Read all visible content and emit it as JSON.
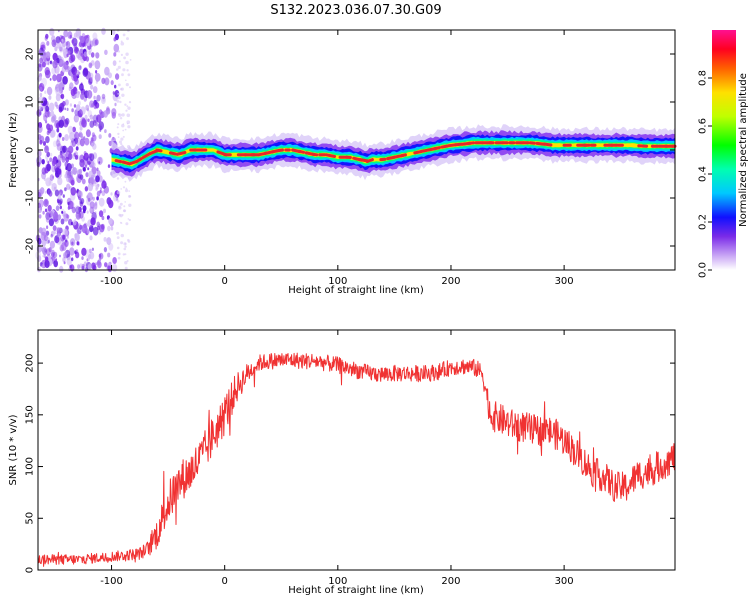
{
  "title": "S132.2023.036.07.30.G09",
  "colors": {
    "snr_line": "#f03232",
    "ridge_core": "#e8262a",
    "noise": "#7a2be8"
  },
  "chart_data": [
    {
      "type": "heatmap",
      "name": "spectrogram",
      "xlabel": "Height of straight line (km)",
      "ylabel": "Frequency (Hz)",
      "xlim": [
        -165,
        398
      ],
      "ylim": [
        -25,
        25
      ],
      "x_ticks": [
        -100,
        0,
        100,
        200,
        300
      ],
      "y_ticks": [
        -20,
        -10,
        0,
        10,
        20
      ],
      "grid": false,
      "noise_region_x": [
        -165,
        -95
      ],
      "ridge": {
        "x": [
          -100,
          -90,
          -82,
          -75,
          -68,
          -60,
          -50,
          -40,
          -30,
          -20,
          -10,
          0,
          10,
          20,
          30,
          40,
          50,
          60,
          70,
          80,
          90,
          100,
          110,
          120,
          125,
          130,
          140,
          150,
          160,
          170,
          180,
          190,
          200,
          210,
          220,
          230,
          240,
          250,
          260,
          270,
          280,
          290,
          300,
          310,
          320,
          330,
          340,
          350,
          360,
          370,
          380,
          398
        ],
        "frequency_hz": [
          -2,
          -2.5,
          -3,
          -2,
          -1,
          0,
          -0.5,
          -1,
          0,
          0,
          0,
          -1,
          -1,
          -1,
          -1,
          -0.5,
          0,
          0,
          -0.5,
          -1,
          -1,
          -1.5,
          -1.5,
          -2,
          -2.5,
          -2,
          -2,
          -1.5,
          -1,
          -0.5,
          0,
          0.5,
          1,
          1.2,
          1.5,
          1.5,
          1.5,
          1.5,
          1.5,
          1.5,
          1.3,
          1,
          1,
          1,
          1,
          1,
          1,
          1,
          1,
          0.8,
          0.8,
          0.8
        ]
      },
      "colorbar": {
        "label": "Normalized spectral amplitude",
        "ticks": [
          "0.0",
          "0.2",
          "0.4",
          "0.6",
          "0.8"
        ],
        "range": [
          0,
          1
        ]
      }
    },
    {
      "type": "line",
      "name": "snr",
      "xlabel": "Height of straight line (km)",
      "ylabel": "SNR (10 * v/v)",
      "xlim": [
        -165,
        398
      ],
      "ylim": [
        0,
        232
      ],
      "x_ticks": [
        -100,
        0,
        100,
        200,
        300
      ],
      "y_ticks": [
        0,
        50,
        100,
        150,
        200
      ],
      "grid": false,
      "series": [
        {
          "x": [
            -165,
            -150,
            -130,
            -110,
            -90,
            -75,
            -68,
            -60,
            -50,
            -40,
            -30,
            -20,
            -10,
            0,
            10,
            20,
            30,
            40,
            50,
            60,
            70,
            80,
            90,
            100,
            110,
            120,
            130,
            140,
            150,
            160,
            170,
            180,
            190,
            200,
            210,
            220,
            228,
            235,
            245,
            255,
            265,
            275,
            285,
            295,
            305,
            315,
            325,
            335,
            345,
            355,
            365,
            375,
            385,
            398
          ],
          "values": [
            10,
            10,
            10,
            12,
            14,
            16,
            20,
            35,
            65,
            85,
            95,
            110,
            130,
            150,
            175,
            190,
            200,
            202,
            203,
            203,
            202,
            202,
            200,
            198,
            195,
            192,
            190,
            189,
            190,
            190,
            190,
            190,
            192,
            196,
            197,
            196,
            190,
            150,
            145,
            140,
            138,
            135,
            135,
            130,
            120,
            108,
            95,
            90,
            80,
            80,
            92,
            95,
            100,
            110
          ],
          "noise_amplitude": [
            5,
            5,
            5,
            5,
            5,
            6,
            8,
            15,
            20,
            20,
            20,
            20,
            20,
            20,
            15,
            10,
            8,
            8,
            8,
            8,
            8,
            8,
            8,
            8,
            8,
            8,
            8,
            8,
            8,
            8,
            8,
            8,
            8,
            8,
            8,
            8,
            10,
            15,
            15,
            15,
            15,
            15,
            15,
            15,
            15,
            15,
            15,
            15,
            15,
            15,
            15,
            15,
            15,
            15
          ]
        }
      ]
    }
  ]
}
